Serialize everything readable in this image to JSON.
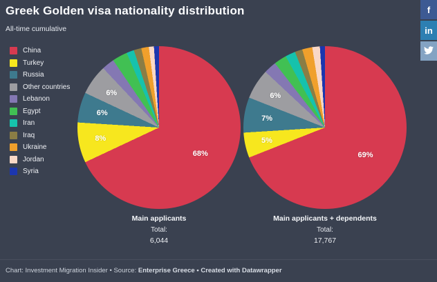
{
  "header": {
    "title": "Greek Golden visa nationality distribution",
    "subtitle": "All-time cumulative"
  },
  "social": {
    "buttons": [
      {
        "name": "facebook",
        "glyph": "f",
        "bg": "#3d5a93"
      },
      {
        "name": "linkedin",
        "glyph": "in",
        "bg": "#2d7fb2"
      },
      {
        "name": "twitter",
        "glyph": "bird",
        "bg": "#84a3c3"
      }
    ]
  },
  "palette": {
    "China": "#d73a50",
    "Turkey": "#f7e71e",
    "Russia": "#3e7a8e",
    "Other countries": "#9d9da1",
    "Lebanon": "#8478b3",
    "Egypt": "#41c053",
    "Iran": "#16c2ac",
    "Iraq": "#8a7d45",
    "Ukraine": "#f0a02c",
    "Jordan": "#f9d8c6",
    "Syria": "#1c36ae"
  },
  "legend": {
    "items": [
      "China",
      "Turkey",
      "Russia",
      "Other countries",
      "Lebanon",
      "Egypt",
      "Iran",
      "Iraq",
      "Ukraine",
      "Jordan",
      "Syria"
    ]
  },
  "chart_data": [
    {
      "type": "pie",
      "title": "Main applicants",
      "total_label": "Total:",
      "total_value": "6,044",
      "categories": [
        "China",
        "Turkey",
        "Russia",
        "Other countries",
        "Lebanon",
        "Egypt",
        "Iran",
        "Iraq",
        "Ukraine",
        "Jordan",
        "Syria"
      ],
      "values": [
        68,
        8,
        6,
        6,
        2.5,
        3,
        1.5,
        1.5,
        1.5,
        1,
        1
      ],
      "slice_labels": [
        {
          "category": "China",
          "text": "68%",
          "r": 0.6
        },
        {
          "category": "Turkey",
          "text": "8%",
          "r": 0.73
        },
        {
          "category": "Russia",
          "text": "6%",
          "r": 0.72
        },
        {
          "category": "Other countries",
          "text": "6%",
          "r": 0.72
        }
      ]
    },
    {
      "type": "pie",
      "title": "Main applicants + dependents",
      "total_label": "Total:",
      "total_value": "17,767",
      "categories": [
        "China",
        "Turkey",
        "Russia",
        "Other countries",
        "Lebanon",
        "Egypt",
        "Iran",
        "Iraq",
        "Ukraine",
        "Jordan",
        "Syria"
      ],
      "values": [
        69,
        5,
        7,
        6,
        2.5,
        2.5,
        2,
        1.5,
        2,
        1.5,
        1
      ],
      "slice_labels": [
        {
          "category": "China",
          "text": "69%",
          "r": 0.6
        },
        {
          "category": "Turkey",
          "text": "5%",
          "r": 0.73
        },
        {
          "category": "Russia",
          "text": "7%",
          "r": 0.72
        },
        {
          "category": "Other countries",
          "text": "6%",
          "r": 0.72
        }
      ]
    }
  ],
  "footer": {
    "chart_label": "Chart:",
    "chart_name": "Investment Migration Insider",
    "bullet": "•",
    "source_label": "Source:",
    "source_name": "Enterprise Greece",
    "credit": "Created with Datawrapper"
  }
}
